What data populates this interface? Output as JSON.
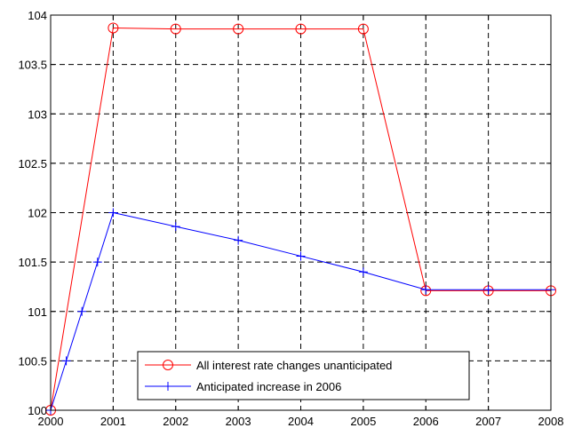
{
  "chart_data": {
    "type": "line",
    "title": "",
    "xlabel": "",
    "ylabel": "",
    "xlim": [
      2000,
      2008
    ],
    "ylim": [
      100,
      104
    ],
    "x_ticks": [
      "2000",
      "2001",
      "2002",
      "2003",
      "2004",
      "2005",
      "2006",
      "2007",
      "2008"
    ],
    "y_ticks": [
      "100",
      "100.5",
      "101",
      "101.5",
      "102",
      "102.5",
      "103",
      "103.5",
      "104"
    ],
    "grid": true,
    "legend_position": "bottom-center",
    "series": [
      {
        "name": "All interest rate changes unanticipated",
        "color": "#ff0000",
        "marker": "circle",
        "x": [
          2000,
          2001,
          2002,
          2003,
          2004,
          2005,
          2006,
          2007,
          2008
        ],
        "y": [
          100.0,
          103.87,
          103.86,
          103.86,
          103.86,
          103.86,
          101.21,
          101.21,
          101.21
        ]
      },
      {
        "name": "Anticipated increase in 2006",
        "color": "#0000ff",
        "marker": "plus",
        "x": [
          2000,
          2000.25,
          2000.5,
          2000.75,
          2001,
          2002,
          2003,
          2004,
          2005,
          2006,
          2007,
          2008
        ],
        "y": [
          100.0,
          100.5,
          101.0,
          101.5,
          102.0,
          101.86,
          101.72,
          101.56,
          101.4,
          101.22,
          101.22,
          101.22
        ]
      }
    ]
  }
}
